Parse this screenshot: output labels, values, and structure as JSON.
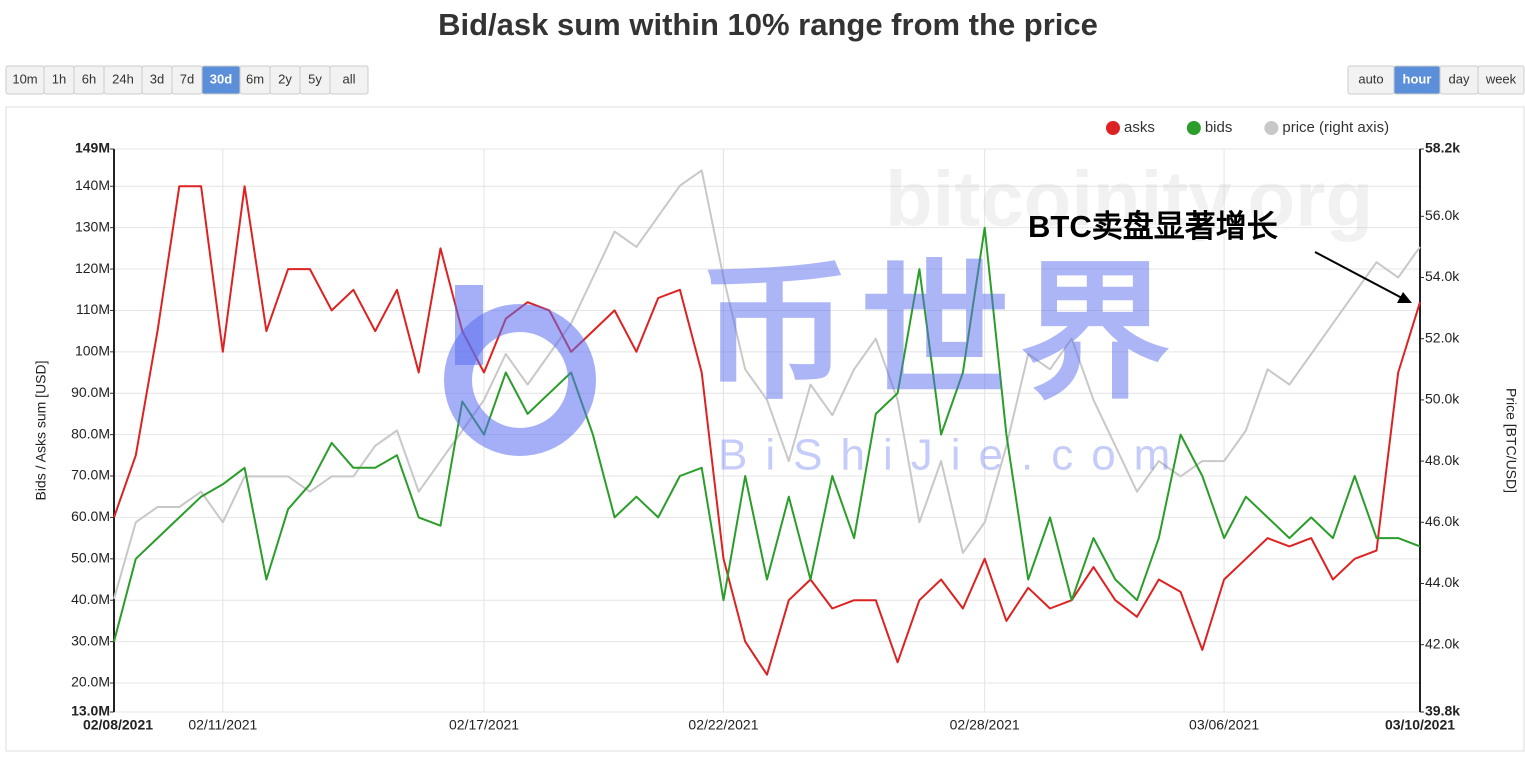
{
  "chart_data": {
    "type": "line",
    "title": "Bid/ask sum within 10% range from the price",
    "range_buttons": [
      {
        "label": "10m"
      },
      {
        "label": "1h"
      },
      {
        "label": "6h"
      },
      {
        "label": "24h"
      },
      {
        "label": "3d"
      },
      {
        "label": "7d"
      },
      {
        "label": "30d",
        "active": true
      },
      {
        "label": "6m"
      },
      {
        "label": "2y"
      },
      {
        "label": "5y"
      },
      {
        "label": "all"
      }
    ],
    "group_buttons": [
      {
        "label": "auto"
      },
      {
        "label": "hour",
        "active": true
      },
      {
        "label": "day"
      },
      {
        "label": "week"
      }
    ],
    "y_label": "Bids / Asks sum [USD]",
    "y2_label": "Price [BTC/USD]",
    "annotation": "BTC卖盘显著增长",
    "watermarks": [
      "bitcoinity.org",
      "币世界",
      "BiShiJie.com"
    ],
    "grid": true,
    "legend": "top-right",
    "categories": [
      "02/08/2021",
      null,
      null,
      null,
      null,
      "02/11/2021",
      null,
      null,
      null,
      null,
      null,
      null,
      null,
      null,
      null,
      null,
      null,
      "02/17/2021",
      null,
      null,
      null,
      null,
      null,
      null,
      null,
      null,
      null,
      null,
      "02/22/2021",
      null,
      null,
      null,
      null,
      null,
      null,
      null,
      null,
      null,
      null,
      null,
      "02/28/2021",
      null,
      null,
      null,
      null,
      null,
      null,
      null,
      null,
      null,
      null,
      "03/06/2021",
      null,
      null,
      null,
      null,
      null,
      null,
      null,
      null,
      "03/10/2021"
    ],
    "ylim": [
      13000000,
      149000000
    ],
    "yticks": [
      {
        "value": 13000000,
        "label": "13.0M"
      },
      {
        "value": 20000000,
        "label": "20.0M"
      },
      {
        "value": 30000000,
        "label": "30.0M"
      },
      {
        "value": 40000000,
        "label": "40.0M"
      },
      {
        "value": 50000000,
        "label": "50.0M"
      },
      {
        "value": 60000000,
        "label": "60.0M"
      },
      {
        "value": 70000000,
        "label": "70.0M"
      },
      {
        "value": 80000000,
        "label": "80.0M"
      },
      {
        "value": 90000000,
        "label": "90.0M"
      },
      {
        "value": 100000000,
        "label": "100M"
      },
      {
        "value": 110000000,
        "label": "110M"
      },
      {
        "value": 120000000,
        "label": "120M"
      },
      {
        "value": 130000000,
        "label": "130M"
      },
      {
        "value": 140000000,
        "label": "140M"
      },
      {
        "value": 149000000,
        "label": "149M"
      }
    ],
    "y2lim": [
      39800,
      58200
    ],
    "y2ticks": [
      {
        "value": 39800,
        "label": "39.8k"
      },
      {
        "value": 42000,
        "label": "42.0k"
      },
      {
        "value": 44000,
        "label": "44.0k"
      },
      {
        "value": 46000,
        "label": "46.0k"
      },
      {
        "value": 48000,
        "label": "48.0k"
      },
      {
        "value": 50000,
        "label": "50.0k"
      },
      {
        "value": 52000,
        "label": "52.0k"
      },
      {
        "value": 54000,
        "label": "54.0k"
      },
      {
        "value": 56000,
        "label": "56.0k"
      },
      {
        "value": 58200,
        "label": "58.2k"
      }
    ],
    "series": [
      {
        "name": "asks",
        "color": "#dd2222",
        "values": [
          60000000,
          75000000,
          105000000,
          140000000,
          140000000,
          100000000,
          140000000,
          105000000,
          120000000,
          120000000,
          110000000,
          115000000,
          105000000,
          115000000,
          95000000,
          125000000,
          105000000,
          95000000,
          108000000,
          112000000,
          110000000,
          100000000,
          105000000,
          110000000,
          100000000,
          113000000,
          115000000,
          95000000,
          50000000,
          30000000,
          22000000,
          40000000,
          45000000,
          38000000,
          40000000,
          40000000,
          25000000,
          40000000,
          45000000,
          38000000,
          50000000,
          35000000,
          43000000,
          38000000,
          40000000,
          48000000,
          40000000,
          36000000,
          45000000,
          42000000,
          28000000,
          45000000,
          50000000,
          55000000,
          53000000,
          55000000,
          45000000,
          50000000,
          52000000,
          95000000,
          112000000
        ]
      },
      {
        "name": "bids",
        "color": "#2a9d2a",
        "values": [
          30000000,
          50000000,
          55000000,
          60000000,
          65000000,
          68000000,
          72000000,
          45000000,
          62000000,
          68000000,
          78000000,
          72000000,
          72000000,
          75000000,
          60000000,
          58000000,
          88000000,
          80000000,
          95000000,
          85000000,
          90000000,
          95000000,
          80000000,
          60000000,
          65000000,
          60000000,
          70000000,
          72000000,
          40000000,
          70000000,
          45000000,
          65000000,
          45000000,
          70000000,
          55000000,
          85000000,
          90000000,
          120000000,
          80000000,
          95000000,
          130000000,
          80000000,
          45000000,
          60000000,
          40000000,
          55000000,
          45000000,
          40000000,
          55000000,
          80000000,
          70000000,
          55000000,
          65000000,
          60000000,
          55000000,
          60000000,
          55000000,
          70000000,
          55000000,
          55000000,
          53000000
        ]
      },
      {
        "name": "price (right axis)",
        "color": "#c8c8c8",
        "axis": "y2",
        "values": [
          43500,
          46000,
          46500,
          46500,
          47000,
          46000,
          47500,
          47500,
          47500,
          47000,
          47500,
          47500,
          48500,
          49000,
          47000,
          48000,
          49000,
          50000,
          51500,
          50500,
          51500,
          52500,
          54000,
          55500,
          55000,
          56000,
          57000,
          57500,
          54000,
          51000,
          50000,
          48000,
          50500,
          49500,
          51000,
          52000,
          50000,
          46000,
          48000,
          45000,
          46000,
          48500,
          51500,
          51000,
          52000,
          50000,
          48500,
          47000,
          48000,
          47500,
          48000,
          48000,
          49000,
          51000,
          50500,
          51500,
          52500,
          53500,
          54500,
          54000,
          55000
        ]
      }
    ]
  }
}
